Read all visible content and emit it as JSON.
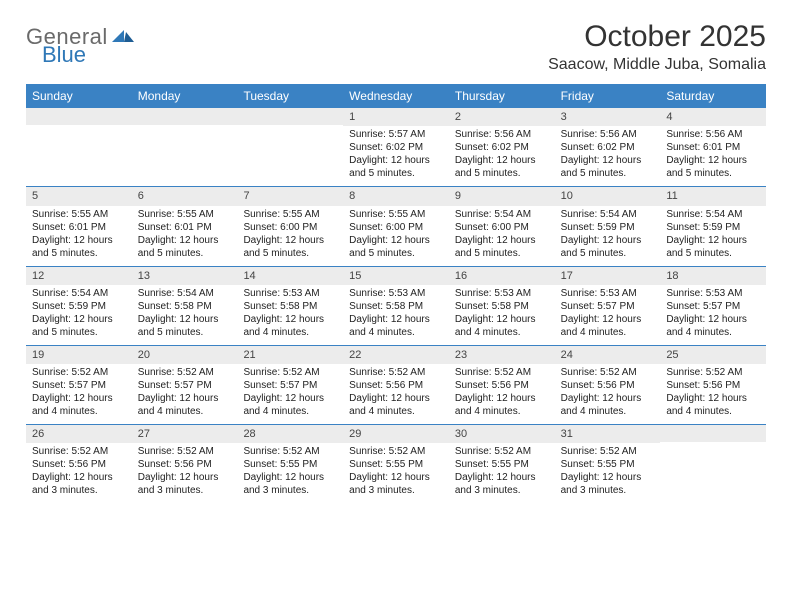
{
  "logo": {
    "general": "General",
    "blue": "Blue"
  },
  "title": "October 2025",
  "location": "Saacow, Middle Juba, Somalia",
  "accent_color": "#3a82c4",
  "daynum_bg": "#ececec",
  "dow": [
    "Sunday",
    "Monday",
    "Tuesday",
    "Wednesday",
    "Thursday",
    "Friday",
    "Saturday"
  ],
  "weeks": [
    [
      {
        "n": "",
        "sr": "",
        "ss": "",
        "dl": ""
      },
      {
        "n": "",
        "sr": "",
        "ss": "",
        "dl": ""
      },
      {
        "n": "",
        "sr": "",
        "ss": "",
        "dl": ""
      },
      {
        "n": "1",
        "sr": "Sunrise: 5:57 AM",
        "ss": "Sunset: 6:02 PM",
        "dl": "Daylight: 12 hours and 5 minutes."
      },
      {
        "n": "2",
        "sr": "Sunrise: 5:56 AM",
        "ss": "Sunset: 6:02 PM",
        "dl": "Daylight: 12 hours and 5 minutes."
      },
      {
        "n": "3",
        "sr": "Sunrise: 5:56 AM",
        "ss": "Sunset: 6:02 PM",
        "dl": "Daylight: 12 hours and 5 minutes."
      },
      {
        "n": "4",
        "sr": "Sunrise: 5:56 AM",
        "ss": "Sunset: 6:01 PM",
        "dl": "Daylight: 12 hours and 5 minutes."
      }
    ],
    [
      {
        "n": "5",
        "sr": "Sunrise: 5:55 AM",
        "ss": "Sunset: 6:01 PM",
        "dl": "Daylight: 12 hours and 5 minutes."
      },
      {
        "n": "6",
        "sr": "Sunrise: 5:55 AM",
        "ss": "Sunset: 6:01 PM",
        "dl": "Daylight: 12 hours and 5 minutes."
      },
      {
        "n": "7",
        "sr": "Sunrise: 5:55 AM",
        "ss": "Sunset: 6:00 PM",
        "dl": "Daylight: 12 hours and 5 minutes."
      },
      {
        "n": "8",
        "sr": "Sunrise: 5:55 AM",
        "ss": "Sunset: 6:00 PM",
        "dl": "Daylight: 12 hours and 5 minutes."
      },
      {
        "n": "9",
        "sr": "Sunrise: 5:54 AM",
        "ss": "Sunset: 6:00 PM",
        "dl": "Daylight: 12 hours and 5 minutes."
      },
      {
        "n": "10",
        "sr": "Sunrise: 5:54 AM",
        "ss": "Sunset: 5:59 PM",
        "dl": "Daylight: 12 hours and 5 minutes."
      },
      {
        "n": "11",
        "sr": "Sunrise: 5:54 AM",
        "ss": "Sunset: 5:59 PM",
        "dl": "Daylight: 12 hours and 5 minutes."
      }
    ],
    [
      {
        "n": "12",
        "sr": "Sunrise: 5:54 AM",
        "ss": "Sunset: 5:59 PM",
        "dl": "Daylight: 12 hours and 5 minutes."
      },
      {
        "n": "13",
        "sr": "Sunrise: 5:54 AM",
        "ss": "Sunset: 5:58 PM",
        "dl": "Daylight: 12 hours and 5 minutes."
      },
      {
        "n": "14",
        "sr": "Sunrise: 5:53 AM",
        "ss": "Sunset: 5:58 PM",
        "dl": "Daylight: 12 hours and 4 minutes."
      },
      {
        "n": "15",
        "sr": "Sunrise: 5:53 AM",
        "ss": "Sunset: 5:58 PM",
        "dl": "Daylight: 12 hours and 4 minutes."
      },
      {
        "n": "16",
        "sr": "Sunrise: 5:53 AM",
        "ss": "Sunset: 5:58 PM",
        "dl": "Daylight: 12 hours and 4 minutes."
      },
      {
        "n": "17",
        "sr": "Sunrise: 5:53 AM",
        "ss": "Sunset: 5:57 PM",
        "dl": "Daylight: 12 hours and 4 minutes."
      },
      {
        "n": "18",
        "sr": "Sunrise: 5:53 AM",
        "ss": "Sunset: 5:57 PM",
        "dl": "Daylight: 12 hours and 4 minutes."
      }
    ],
    [
      {
        "n": "19",
        "sr": "Sunrise: 5:52 AM",
        "ss": "Sunset: 5:57 PM",
        "dl": "Daylight: 12 hours and 4 minutes."
      },
      {
        "n": "20",
        "sr": "Sunrise: 5:52 AM",
        "ss": "Sunset: 5:57 PM",
        "dl": "Daylight: 12 hours and 4 minutes."
      },
      {
        "n": "21",
        "sr": "Sunrise: 5:52 AM",
        "ss": "Sunset: 5:57 PM",
        "dl": "Daylight: 12 hours and 4 minutes."
      },
      {
        "n": "22",
        "sr": "Sunrise: 5:52 AM",
        "ss": "Sunset: 5:56 PM",
        "dl": "Daylight: 12 hours and 4 minutes."
      },
      {
        "n": "23",
        "sr": "Sunrise: 5:52 AM",
        "ss": "Sunset: 5:56 PM",
        "dl": "Daylight: 12 hours and 4 minutes."
      },
      {
        "n": "24",
        "sr": "Sunrise: 5:52 AM",
        "ss": "Sunset: 5:56 PM",
        "dl": "Daylight: 12 hours and 4 minutes."
      },
      {
        "n": "25",
        "sr": "Sunrise: 5:52 AM",
        "ss": "Sunset: 5:56 PM",
        "dl": "Daylight: 12 hours and 4 minutes."
      }
    ],
    [
      {
        "n": "26",
        "sr": "Sunrise: 5:52 AM",
        "ss": "Sunset: 5:56 PM",
        "dl": "Daylight: 12 hours and 3 minutes."
      },
      {
        "n": "27",
        "sr": "Sunrise: 5:52 AM",
        "ss": "Sunset: 5:56 PM",
        "dl": "Daylight: 12 hours and 3 minutes."
      },
      {
        "n": "28",
        "sr": "Sunrise: 5:52 AM",
        "ss": "Sunset: 5:55 PM",
        "dl": "Daylight: 12 hours and 3 minutes."
      },
      {
        "n": "29",
        "sr": "Sunrise: 5:52 AM",
        "ss": "Sunset: 5:55 PM",
        "dl": "Daylight: 12 hours and 3 minutes."
      },
      {
        "n": "30",
        "sr": "Sunrise: 5:52 AM",
        "ss": "Sunset: 5:55 PM",
        "dl": "Daylight: 12 hours and 3 minutes."
      },
      {
        "n": "31",
        "sr": "Sunrise: 5:52 AM",
        "ss": "Sunset: 5:55 PM",
        "dl": "Daylight: 12 hours and 3 minutes."
      },
      {
        "n": "",
        "sr": "",
        "ss": "",
        "dl": ""
      }
    ]
  ]
}
